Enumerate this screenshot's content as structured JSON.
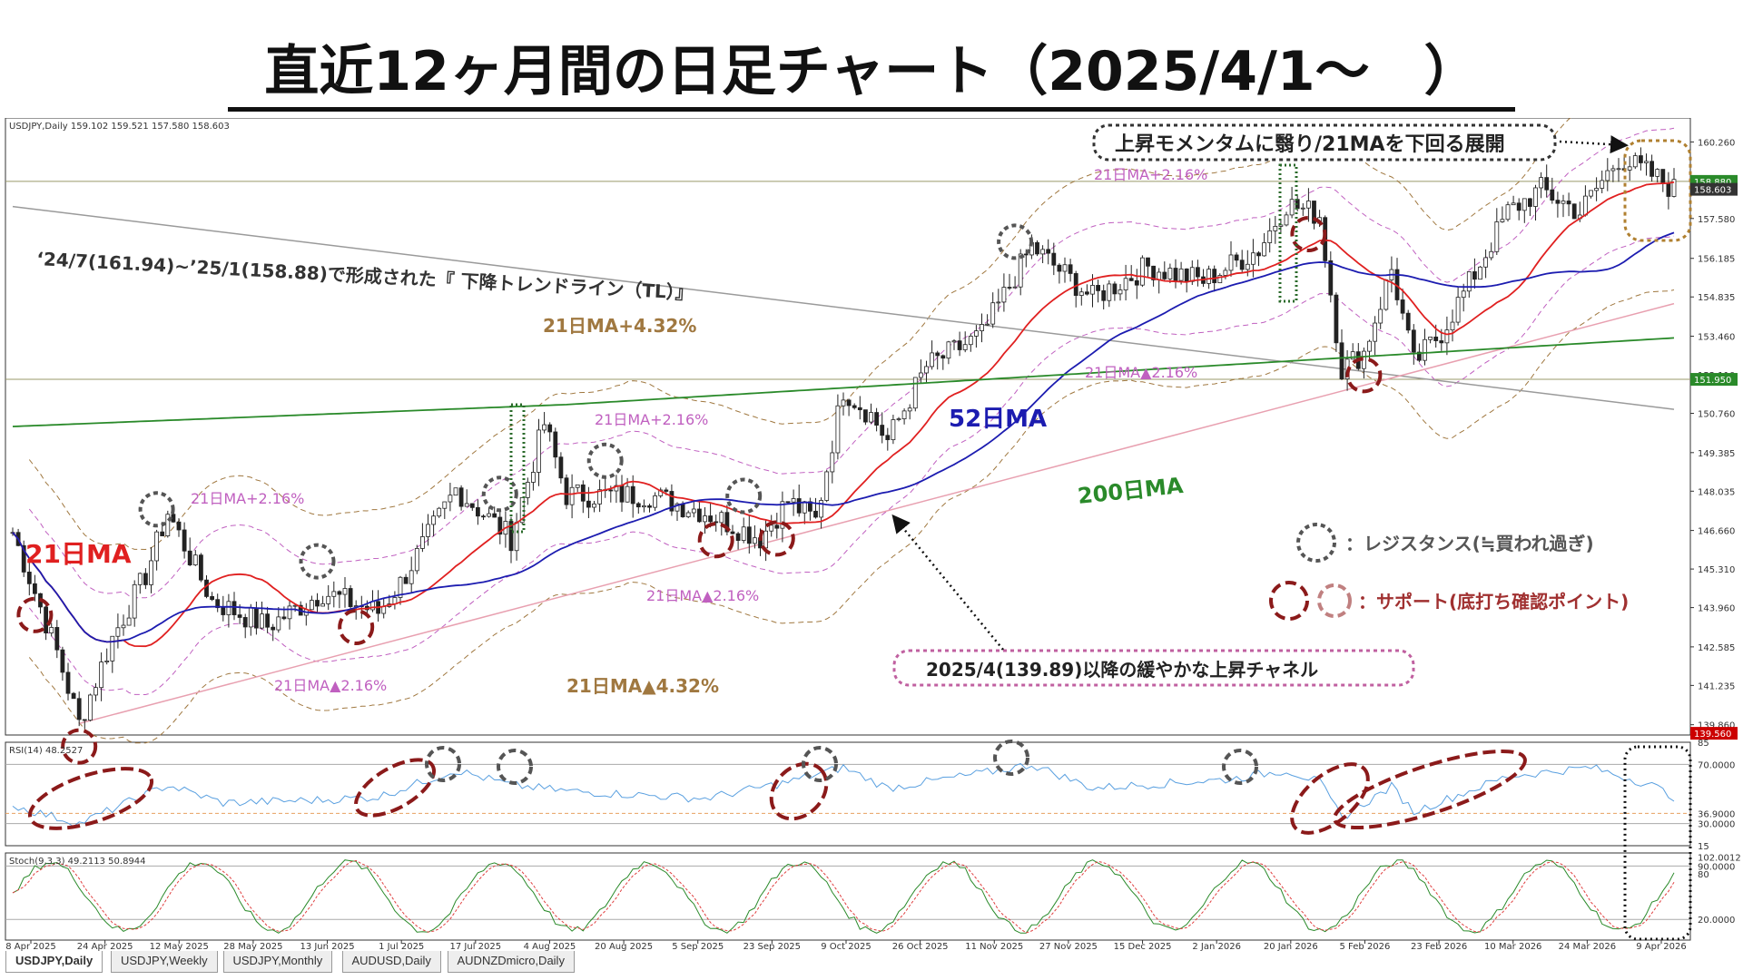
{
  "title": "直近12ヶ月間の日足チャート（2025/4/1～　）",
  "tabs": [
    {
      "label": "USDJPY,Daily",
      "active": true
    },
    {
      "label": "USDJPY,Weekly",
      "active": false
    },
    {
      "label": "USDJPY,Monthly",
      "active": false
    },
    {
      "label": "AUDUSD,Daily",
      "active": false
    },
    {
      "label": "AUDNZDmicro,Daily",
      "active": false
    }
  ],
  "colors": {
    "ma21": "#e02020",
    "ma52": "#1c1cb0",
    "ma200": "#2a8a2a",
    "band1": "#c060c0",
    "band2": "#a07840",
    "rsi": "#5aa0e0",
    "stochMain": "#2a8a2a",
    "stochSignal": "#e04040",
    "resistance": "#555555",
    "support": "#8b1a1a",
    "supportLight": "#c08080",
    "annot": "#c060a0"
  },
  "chart_data": [
    {
      "type": "candlestick",
      "header": "USDJPY,Daily  159.102 159.521 157.580 158.603",
      "x_labels": [
        "8 Apr 2025",
        "24 Apr 2025",
        "12 May 2025",
        "28 May 2025",
        "13 Jun 2025",
        "1 Jul 2025",
        "17 Jul 2025",
        "4 Aug 2025",
        "20 Aug 2025",
        "5 Sep 2025",
        "23 Sep 2025",
        "9 Oct 2025",
        "26 Oct 2025",
        "11 Nov 2025",
        "27 Nov 2025",
        "15 Dec 2025",
        "2 Jan 2026",
        "20 Jan 2026",
        "5 Feb 2026",
        "23 Feb 2026",
        "10 Mar 2026",
        "24 Mar 2026",
        "9 Apr 2026"
      ],
      "y_ticks": [
        "160.260",
        "158.880",
        "157.580",
        "156.185",
        "154.835",
        "153.460",
        "152.110",
        "150.760",
        "149.385",
        "148.035",
        "146.660",
        "145.310",
        "143.960",
        "142.585",
        "141.235",
        "139.860"
      ],
      "ylim": [
        139.5,
        161.1
      ],
      "price_tags": [
        {
          "value": 158.88,
          "label": "158.880",
          "color": "#2a8a2a"
        },
        {
          "value": 158.603,
          "label": "158.603",
          "color": "#333333"
        },
        {
          "value": 151.95,
          "label": "151.950",
          "color": "#2a8a2a"
        },
        {
          "value": 139.56,
          "label": "139.560",
          "color": "#cc0000"
        }
      ],
      "horizontal_levels": [
        158.88,
        151.95
      ],
      "close_anchors": [
        [
          0,
          146.6
        ],
        [
          8,
          142.4
        ],
        [
          12,
          139.9
        ],
        [
          18,
          142.9
        ],
        [
          24,
          145.1
        ],
        [
          28,
          147.3
        ],
        [
          36,
          144.2
        ],
        [
          46,
          143.3
        ],
        [
          56,
          144.5
        ],
        [
          66,
          143.8
        ],
        [
          70,
          144.8
        ],
        [
          80,
          148.1
        ],
        [
          90,
          146.4
        ],
        [
          96,
          150.4
        ],
        [
          100,
          147.9
        ],
        [
          115,
          147.9
        ],
        [
          125,
          147.3
        ],
        [
          135,
          146.4
        ],
        [
          140,
          147.7
        ],
        [
          145,
          147.0
        ],
        [
          150,
          151.6
        ],
        [
          155,
          150.7
        ],
        [
          158,
          149.8
        ],
        [
          165,
          152.4
        ],
        [
          175,
          153.5
        ],
        [
          184,
          156.6
        ],
        [
          195,
          154.8
        ],
        [
          205,
          155.9
        ],
        [
          215,
          155.4
        ],
        [
          225,
          156.5
        ],
        [
          230,
          158.1
        ],
        [
          236,
          157.7
        ],
        [
          240,
          152.3
        ],
        [
          244,
          152.9
        ],
        [
          249,
          155.8
        ],
        [
          253,
          152.5
        ],
        [
          258,
          153.6
        ],
        [
          263,
          155.3
        ],
        [
          270,
          157.8
        ],
        [
          276,
          158.6
        ],
        [
          283,
          157.8
        ],
        [
          290,
          159.7
        ],
        [
          296,
          159.1
        ],
        [
          300,
          158.6
        ]
      ],
      "total_bars": 301,
      "series": [
        {
          "name": "21日MA",
          "period": 21
        },
        {
          "name": "52日MA",
          "period": 52
        },
        {
          "name": "200日MA",
          "start": 149.9,
          "end": 153.4
        }
      ],
      "bands": [
        "21日MA+4.32%",
        "21日MA+2.16%",
        "21日MA▲2.16%",
        "21日MA▲4.32%"
      ],
      "trendlines": [
        {
          "label": "‘24/7(161.94)~’25/1(158.88)で形成された『 下降トレンドライン（TL）』",
          "from": [
            0,
            158.0
          ],
          "to": [
            300,
            150.9
          ],
          "color": "#9a9a9a"
        },
        {
          "label": "2025/4(139.89)以降の緩やかな上昇チャネル",
          "from": [
            12,
            139.9
          ],
          "to": [
            300,
            154.6
          ],
          "color": "#e8a0b0"
        }
      ],
      "annotations": [
        "上昇モメンタムに翳り/21MAを下回る展開",
        "21日MA+2.16%",
        "21日MA+4.32%",
        "21日MA▲2.16%",
        "21日MA▲4.32%",
        "52日MA",
        "200日MA",
        "21日MA"
      ],
      "legend": [
        {
          "label": "：レジスタンス(≒買われ過ぎ)",
          "kind": "resistance"
        },
        {
          "label": "：サポート(底打ち確認ポイント)",
          "kind": "support"
        }
      ],
      "resistance_bars": [
        26,
        55,
        88,
        107,
        132,
        181
      ],
      "support_bars": [
        4,
        12,
        62,
        127,
        138,
        234,
        244
      ]
    },
    {
      "type": "line",
      "header": "RSI(14) 48.2527",
      "ylim": [
        15,
        85
      ],
      "y_ticks": [
        "85",
        "70.0000",
        "36.9000",
        "30.0000",
        "15"
      ],
      "levels": [
        70,
        36.9,
        30
      ],
      "anchors": [
        [
          0,
          42
        ],
        [
          8,
          34
        ],
        [
          12,
          30
        ],
        [
          28,
          56
        ],
        [
          38,
          44
        ],
        [
          56,
          46
        ],
        [
          66,
          48
        ],
        [
          80,
          66
        ],
        [
          90,
          56
        ],
        [
          100,
          52
        ],
        [
          125,
          47
        ],
        [
          140,
          58
        ],
        [
          150,
          68
        ],
        [
          158,
          54
        ],
        [
          175,
          64
        ],
        [
          184,
          70
        ],
        [
          195,
          54
        ],
        [
          220,
          60
        ],
        [
          230,
          66
        ],
        [
          236,
          58
        ],
        [
          240,
          34
        ],
        [
          249,
          55
        ],
        [
          253,
          38
        ],
        [
          270,
          62
        ],
        [
          285,
          68
        ],
        [
          296,
          56
        ],
        [
          300,
          48
        ]
      ]
    },
    {
      "type": "line",
      "header": "Stoch(9,3,3) 49.2113 50.8944",
      "ylim": [
        0,
        100
      ],
      "y_ticks": [
        "102.0012",
        "90.0000",
        "80",
        "20.0000"
      ],
      "levels": [
        90,
        20
      ]
    }
  ]
}
